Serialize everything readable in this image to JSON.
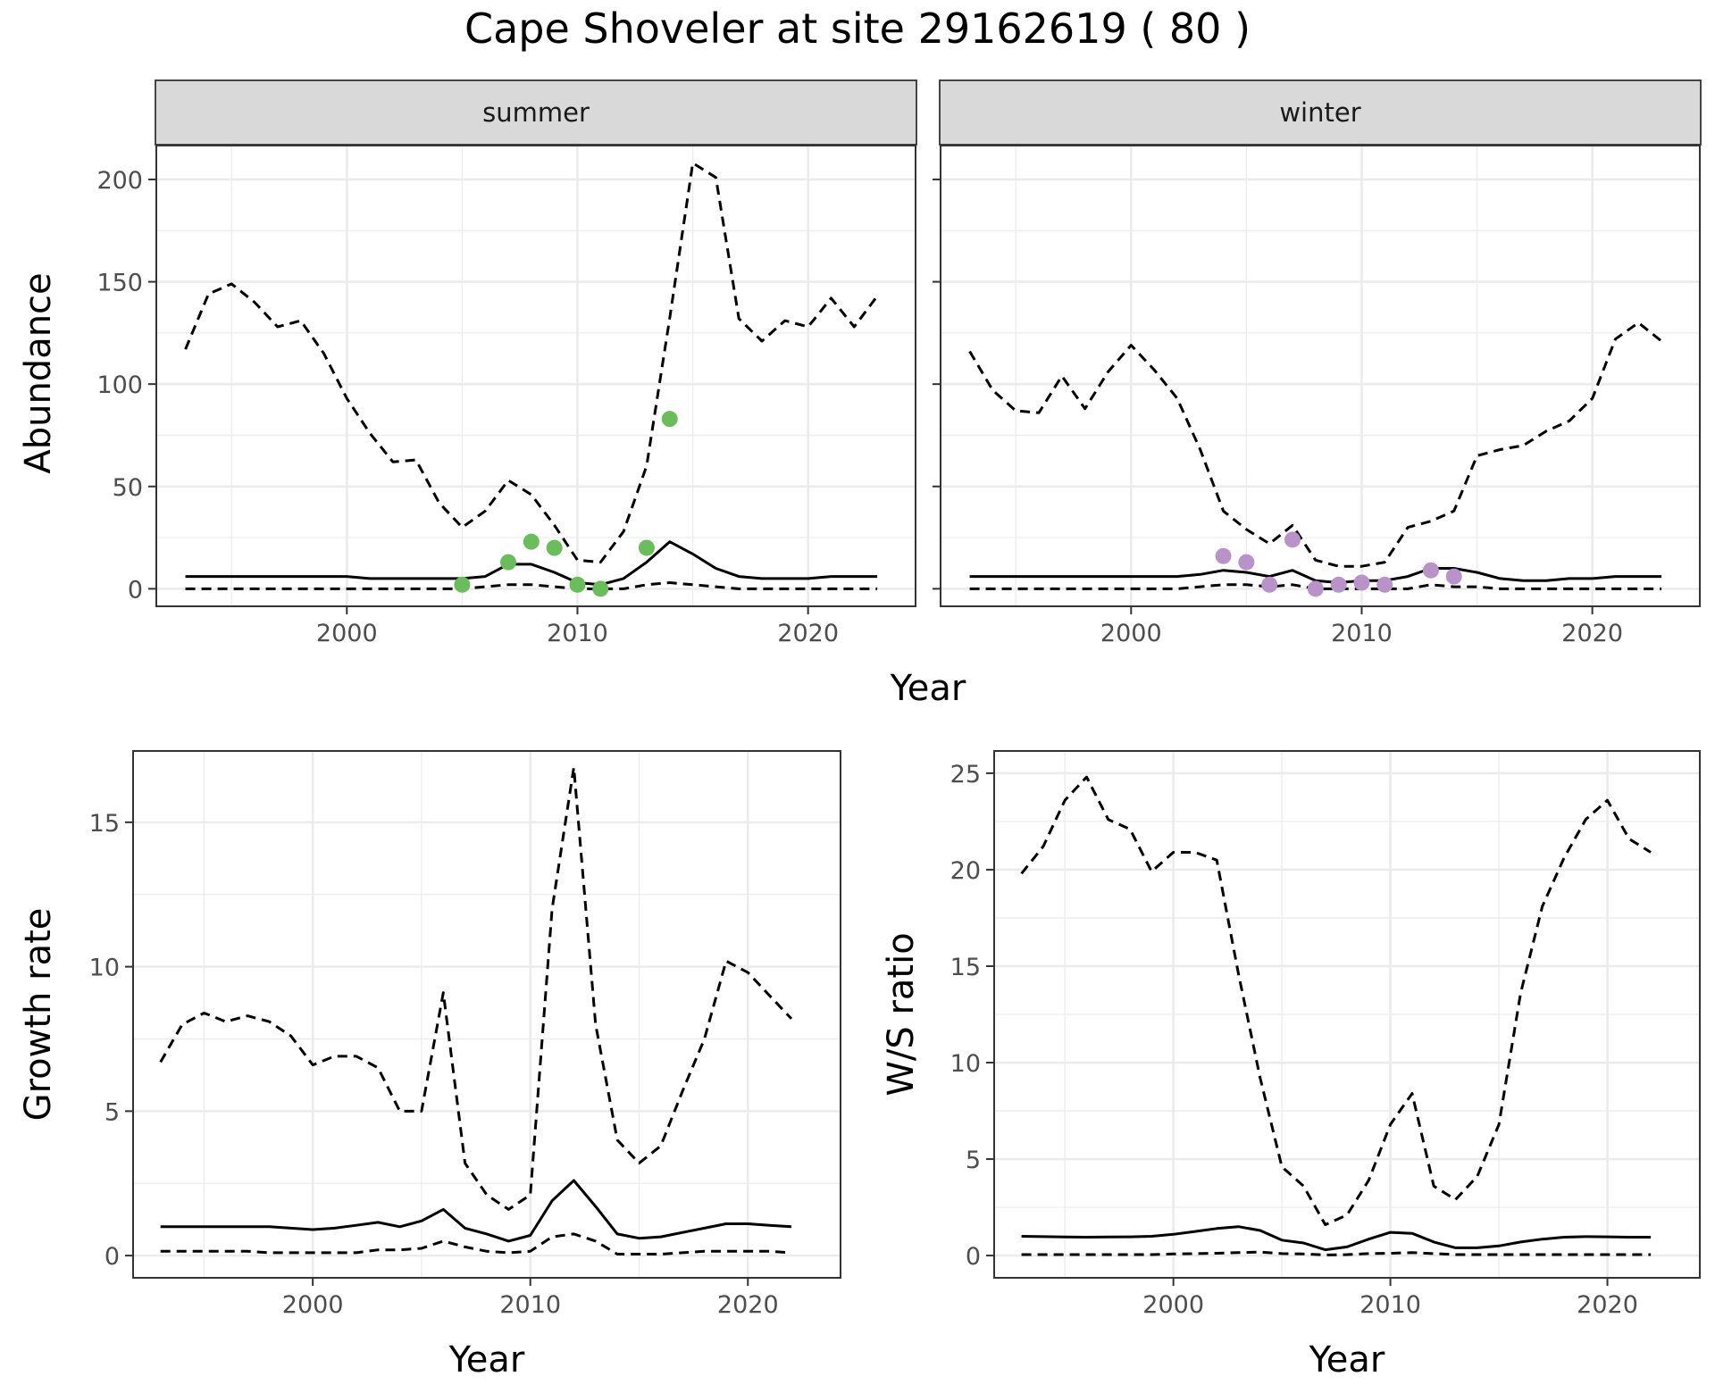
{
  "title": "Cape Shoveler at site 29162619 ( 80 )",
  "colors": {
    "summer_points": "#6ABD5B",
    "winter_points": "#B892C9",
    "line": "#000000",
    "strip_bg": "#D9D9D9",
    "grid": "#EBEBEB"
  },
  "chart_data": [
    {
      "id": "abundance-summer",
      "type": "line",
      "facet": "summer",
      "xlabel": "Year",
      "ylabel": "Abundance",
      "xlim": [
        1991.7,
        2024.7
      ],
      "ylim": [
        -9,
        217
      ],
      "xticks": [
        2000,
        2010,
        2020
      ],
      "xtick_labels": [
        "2000",
        "2010",
        "2020"
      ],
      "yticks": [
        0,
        50,
        100,
        150,
        200
      ],
      "ytick_labels": [
        "0",
        "50",
        "100",
        "150",
        "200"
      ],
      "series": [
        {
          "role": "upper",
          "style": "dashed",
          "x": [
            1993,
            1994,
            1995,
            1996,
            1997,
            1998,
            1999,
            2000,
            2001,
            2002,
            2003,
            2004,
            2005,
            2006,
            2007,
            2008,
            2009,
            2010,
            2011,
            2012,
            2013,
            2014,
            2015,
            2016,
            2017,
            2018,
            2019,
            2020,
            2021,
            2022,
            2023
          ],
          "y": [
            117,
            144,
            149,
            140,
            128,
            131,
            115,
            93,
            76,
            62,
            63,
            42,
            30,
            38,
            53,
            46,
            31,
            14,
            13,
            28,
            60,
            132,
            208,
            201,
            132,
            121,
            131,
            128,
            142,
            128,
            143
          ]
        },
        {
          "role": "mean",
          "style": "solid",
          "x": [
            1993,
            1994,
            1995,
            1996,
            1997,
            1998,
            1999,
            2000,
            2001,
            2002,
            2003,
            2004,
            2005,
            2006,
            2007,
            2008,
            2009,
            2010,
            2011,
            2012,
            2013,
            2014,
            2015,
            2016,
            2017,
            2018,
            2019,
            2020,
            2021,
            2022,
            2023
          ],
          "y": [
            6,
            6,
            6,
            6,
            6,
            6,
            6,
            6,
            5,
            5,
            5,
            5,
            5,
            6,
            12,
            12,
            8,
            3,
            2,
            5,
            13,
            23,
            17,
            10,
            6,
            5,
            5,
            5,
            6,
            6,
            6
          ]
        },
        {
          "role": "lower",
          "style": "dashed",
          "x": [
            1993,
            1994,
            1995,
            1996,
            1997,
            1998,
            1999,
            2000,
            2001,
            2002,
            2003,
            2004,
            2005,
            2006,
            2007,
            2008,
            2009,
            2010,
            2011,
            2012,
            2013,
            2014,
            2015,
            2016,
            2017,
            2018,
            2019,
            2020,
            2021,
            2022,
            2023
          ],
          "y": [
            0,
            0,
            0,
            0,
            0,
            0,
            0,
            0,
            0,
            0,
            0,
            0,
            0,
            1,
            2,
            2,
            1,
            0,
            0,
            0,
            2,
            3,
            2,
            1,
            0,
            0,
            0,
            0,
            0,
            0,
            0
          ]
        }
      ],
      "points": {
        "x": [
          2005,
          2007,
          2008,
          2009,
          2010,
          2011,
          2013,
          2014
        ],
        "y": [
          2,
          13,
          23,
          20,
          2,
          0,
          20,
          83
        ]
      }
    },
    {
      "id": "abundance-winter",
      "type": "line",
      "facet": "winter",
      "xlabel": "Year",
      "ylabel": "",
      "xlim": [
        1991.7,
        2024.7
      ],
      "ylim": [
        -9,
        217
      ],
      "xticks": [
        2000,
        2010,
        2020
      ],
      "xtick_labels": [
        "2000",
        "2010",
        "2020"
      ],
      "yticks": [
        0,
        50,
        100,
        150,
        200
      ],
      "ytick_labels": [],
      "series": [
        {
          "role": "upper",
          "style": "dashed",
          "x": [
            1993,
            1994,
            1995,
            1996,
            1997,
            1998,
            1999,
            2000,
            2001,
            2002,
            2003,
            2004,
            2005,
            2006,
            2007,
            2008,
            2009,
            2010,
            2011,
            2012,
            2013,
            2014,
            2015,
            2016,
            2017,
            2018,
            2019,
            2020,
            2021,
            2022,
            2023
          ],
          "y": [
            116,
            97,
            87,
            86,
            104,
            88,
            106,
            119,
            107,
            93,
            68,
            38,
            29,
            22,
            31,
            14,
            11,
            11,
            13,
            30,
            33,
            38,
            65,
            68,
            70,
            77,
            82,
            93,
            122,
            130,
            121
          ]
        },
        {
          "role": "mean",
          "style": "solid",
          "x": [
            1993,
            1994,
            1995,
            1996,
            1997,
            1998,
            1999,
            2000,
            2001,
            2002,
            2003,
            2004,
            2005,
            2006,
            2007,
            2008,
            2009,
            2010,
            2011,
            2012,
            2013,
            2014,
            2015,
            2016,
            2017,
            2018,
            2019,
            2020,
            2021,
            2022,
            2023
          ],
          "y": [
            6,
            6,
            6,
            6,
            6,
            6,
            6,
            6,
            6,
            6,
            7,
            9,
            8,
            6,
            9,
            4,
            3,
            4,
            4,
            6,
            10,
            10,
            8,
            5,
            4,
            4,
            5,
            5,
            6,
            6,
            6
          ]
        },
        {
          "role": "lower",
          "style": "dashed",
          "x": [
            1993,
            1994,
            1995,
            1996,
            1997,
            1998,
            1999,
            2000,
            2001,
            2002,
            2003,
            2004,
            2005,
            2006,
            2007,
            2008,
            2009,
            2010,
            2011,
            2012,
            2013,
            2014,
            2015,
            2016,
            2017,
            2018,
            2019,
            2020,
            2021,
            2022,
            2023
          ],
          "y": [
            0,
            0,
            0,
            0,
            0,
            0,
            0,
            0,
            0,
            0,
            1,
            2,
            2,
            1,
            2,
            0,
            0,
            0,
            0,
            0,
            2,
            1,
            1,
            0,
            0,
            0,
            0,
            0,
            0,
            0,
            0
          ]
        }
      ],
      "points": {
        "x": [
          2004,
          2005,
          2006,
          2007,
          2008,
          2009,
          2010,
          2011,
          2013,
          2014
        ],
        "y": [
          16,
          13,
          2,
          24,
          0,
          2,
          3,
          2,
          9,
          6
        ]
      }
    },
    {
      "id": "growth-rate",
      "type": "line",
      "xlabel": "Year",
      "ylabel": "Growth rate",
      "xlim": [
        1991.7,
        2024.3
      ],
      "ylim": [
        -0.8,
        17.5
      ],
      "xticks": [
        2000,
        2010,
        2020
      ],
      "xtick_labels": [
        "2000",
        "2010",
        "2020"
      ],
      "yticks": [
        0,
        5,
        10,
        15
      ],
      "ytick_labels": [
        "0",
        "5",
        "10",
        "15"
      ],
      "series": [
        {
          "role": "upper",
          "style": "dashed",
          "x": [
            1993,
            1994,
            1995,
            1996,
            1997,
            1998,
            1999,
            2000,
            2001,
            2002,
            2003,
            2004,
            2005,
            2006,
            2007,
            2008,
            2009,
            2010,
            2011,
            2012,
            2013,
            2014,
            2015,
            2016,
            2017,
            2018,
            2019,
            2020,
            2021,
            2022
          ],
          "y": [
            6.7,
            8.0,
            8.4,
            8.1,
            8.3,
            8.1,
            7.6,
            6.6,
            6.9,
            6.9,
            6.5,
            5.0,
            5.0,
            9.1,
            3.2,
            2.1,
            1.6,
            2.1,
            12.0,
            16.9,
            8.0,
            4.0,
            3.2,
            3.8,
            5.7,
            7.5,
            10.2,
            9.8,
            9.0,
            8.2
          ]
        },
        {
          "role": "mean",
          "style": "solid",
          "x": [
            1993,
            1994,
            1995,
            1996,
            1997,
            1998,
            1999,
            2000,
            2001,
            2002,
            2003,
            2004,
            2005,
            2006,
            2007,
            2008,
            2009,
            2010,
            2011,
            2012,
            2013,
            2014,
            2015,
            2016,
            2017,
            2018,
            2019,
            2020,
            2021,
            2022
          ],
          "y": [
            1.0,
            1.0,
            1.0,
            1.0,
            1.0,
            1.0,
            0.95,
            0.9,
            0.95,
            1.05,
            1.15,
            1.0,
            1.2,
            1.6,
            0.95,
            0.75,
            0.5,
            0.7,
            1.9,
            2.6,
            1.7,
            0.75,
            0.6,
            0.65,
            0.8,
            0.95,
            1.1,
            1.1,
            1.05,
            1.0
          ]
        },
        {
          "role": "lower",
          "style": "dashed",
          "x": [
            1993,
            1994,
            1995,
            1996,
            1997,
            1998,
            1999,
            2000,
            2001,
            2002,
            2003,
            2004,
            2005,
            2006,
            2007,
            2008,
            2009,
            2010,
            2011,
            2012,
            2013,
            2014,
            2015,
            2016,
            2017,
            2018,
            2019,
            2020,
            2021,
            2022
          ],
          "y": [
            0.15,
            0.15,
            0.15,
            0.15,
            0.15,
            0.1,
            0.1,
            0.1,
            0.1,
            0.1,
            0.2,
            0.2,
            0.25,
            0.5,
            0.3,
            0.15,
            0.1,
            0.15,
            0.65,
            0.75,
            0.5,
            0.05,
            0.05,
            0.05,
            0.1,
            0.15,
            0.15,
            0.15,
            0.15,
            0.1
          ]
        }
      ]
    },
    {
      "id": "ws-ratio",
      "type": "line",
      "xlabel": "Year",
      "ylabel": "W/S ratio",
      "xlim": [
        1991.7,
        2024.3
      ],
      "ylim": [
        -1.2,
        26.2
      ],
      "xticks": [
        2000,
        2010,
        2020
      ],
      "xtick_labels": [
        "2000",
        "2010",
        "2020"
      ],
      "yticks": [
        0,
        5,
        10,
        15,
        20,
        25
      ],
      "ytick_labels": [
        "0",
        "5",
        "10",
        "15",
        "20",
        "25"
      ],
      "series": [
        {
          "role": "upper",
          "style": "dashed",
          "x": [
            1993,
            1994,
            1995,
            1996,
            1997,
            1998,
            1999,
            2000,
            2001,
            2002,
            2003,
            2004,
            2005,
            2006,
            2007,
            2008,
            2009,
            2010,
            2011,
            2012,
            2013,
            2014,
            2015,
            2016,
            2017,
            2018,
            2019,
            2020,
            2021,
            2022
          ],
          "y": [
            19.8,
            21.2,
            23.6,
            24.8,
            22.6,
            22.1,
            19.9,
            20.9,
            20.9,
            20.5,
            14.6,
            9.2,
            4.6,
            3.6,
            1.6,
            2.1,
            3.9,
            6.8,
            8.4,
            3.6,
            2.9,
            4.1,
            6.8,
            13.6,
            18.1,
            20.6,
            22.6,
            23.6,
            21.6,
            20.9
          ]
        },
        {
          "role": "mean",
          "style": "solid",
          "x": [
            1993,
            1994,
            1995,
            1996,
            1997,
            1998,
            1999,
            2000,
            2001,
            2002,
            2003,
            2004,
            2005,
            2006,
            2007,
            2008,
            2009,
            2010,
            2011,
            2012,
            2013,
            2014,
            2015,
            2016,
            2017,
            2018,
            2019,
            2020,
            2021,
            2022
          ],
          "y": [
            1.0,
            0.98,
            0.96,
            0.95,
            0.96,
            0.97,
            1.0,
            1.1,
            1.25,
            1.4,
            1.5,
            1.3,
            0.8,
            0.65,
            0.3,
            0.45,
            0.85,
            1.2,
            1.15,
            0.7,
            0.4,
            0.4,
            0.5,
            0.7,
            0.85,
            0.95,
            0.98,
            0.97,
            0.95,
            0.95
          ]
        },
        {
          "role": "lower",
          "style": "dashed",
          "x": [
            1993,
            1994,
            1995,
            1996,
            1997,
            1998,
            1999,
            2000,
            2001,
            2002,
            2003,
            2004,
            2005,
            2006,
            2007,
            2008,
            2009,
            2010,
            2011,
            2012,
            2013,
            2014,
            2015,
            2016,
            2017,
            2018,
            2019,
            2020,
            2021,
            2022
          ],
          "y": [
            0.05,
            0.05,
            0.05,
            0.05,
            0.05,
            0.05,
            0.05,
            0.08,
            0.1,
            0.12,
            0.15,
            0.18,
            0.1,
            0.08,
            0.03,
            0.05,
            0.1,
            0.12,
            0.15,
            0.1,
            0.05,
            0.05,
            0.05,
            0.05,
            0.05,
            0.05,
            0.05,
            0.05,
            0.05,
            0.05
          ]
        }
      ]
    }
  ]
}
